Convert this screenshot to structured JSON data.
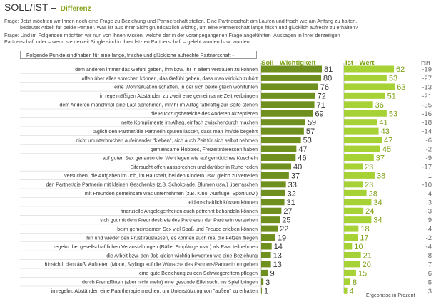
{
  "title": "SOLL/IST –",
  "subtitle": "Differenz",
  "question1": "Frage: Jetzt möchten wir Ihnen noch eine Frage zu Beziehung und Partnerschaft stellen. Eine Partnerschaft am Laufen und frisch wie am Anfang zu halten,\n           bedeutet Arbeit für beide Partner. Was ist aus Ihrer Sicht grundsätzlich wichtig, um eine Partnerschaft lange frisch und glücklich aufrecht zu erhalten?",
  "question2": "Frage: Und im Folgenden möchten wir nun von Ihnen wissen, welche der in der vorangegangenen Frage angeführten  Aussagen in Ihrer derzeitigen\nPartnerschaft oder – wenn sie derzeit Single sind in Ihrer letzten Partnerschaft – gelebt wurden bzw. wurden.",
  "intro": "Folgende Punkte sind/haben für eine lange, frische und glückliche aufrechte Partnerschaft -",
  "footer": "Ergebnisse in Prozent",
  "colors": {
    "soll": "#6f8f1f",
    "ist": "#a6d236",
    "label": "#7ea217"
  },
  "chart_data": {
    "type": "bar",
    "categories": [
      "dem anderen immer das Gefühl geben, ihm bzw. ihr in allem vertrauen zu können",
      "offen über alles sprechen können, das Gefühl geben, dass man wirklich zuhört",
      "eine Wohnsituation schaffen, in der sich beide gleich wohlfühlen",
      "in regelmäßigen Abständen zu zweit eine gemeinsame Zeit verbringen",
      "dem Anderen manchmal eine Last abnehmen, ihn/ihr im Alltag tatkräftig zur Seite stehen",
      "die Rückzugsbereiche des Anderen akzeptieren",
      "nette Komplimente im Alltag, einfach zwischendurch machen",
      "täglich den Partner/die Partnerin spüren lassen, dass man ihn/sie begehrt",
      "nicht ununterbrochen aufeinander \"kleben\", sich auch Zeit für sich selbst nehmen",
      "gemeinsame Hobbies, Freizeitinteressen haben",
      "auf guten Sex genauso viel Wert legen wie auf gemütliches Kuscheln",
      "Eifersucht offen aussprechen und darüber in Ruhe reden",
      "versuchen, die Aufgaben im Job, im Haushalt, bei den Kindern usw. gleich zu verteilen",
      "den Partner/die Partnerin mit kleinen Geschenke (z.B. Schokolade, Blumen usw.) überraschen",
      "mit Freunden gemeinsam was unternehmen (z.B. Kino, Ausflüge, Sport usw.)",
      "leidenschaftlich küssen können",
      "finanzielle Angelegenheiten auch getrennt behandeln können",
      "sich gut mit dem Freundeskreis des Partners / der Partnerin verstehen",
      "beim gemeinsamen Sex viel Spaß und Freude erleben können",
      "hin und wieder den Frust rauslassen, es können auch mal die Fetzen fliegen",
      "regelm. bei gesellschaftlichen Veranstaltungen (Bälle, Empfänge usw.) als Paar  teilnehmen",
      "die Arbeit bzw. den Job gleich wichtig bewerten wie eine Beziehung",
      "hinsichtl. dem äuß. Auftreten (Mode, Styling) auf die Wünsche des Partners/Partnerin eingehen",
      "eine gute Beziehung zu den Schwiegereltern pflegen",
      "durch Fremdflirten (aber nicht mehr) eine gesunde Eifersucht ins Spiel bringen",
      "in regelm. Abständen eine Paartherapie machen, um Unterstützung von \"außen\" zu erhalten"
    ],
    "series": [
      {
        "name": "Soll - Wichtigkeit",
        "values": [
          81,
          80,
          76,
          72,
          71,
          69,
          59,
          57,
          53,
          47,
          46,
          40,
          37,
          33,
          32,
          31,
          27,
          25,
          22,
          19,
          14,
          13,
          13,
          9,
          3,
          1
        ]
      },
      {
        "name": "Ist - Wert",
        "values": [
          62,
          53,
          63,
          51,
          36,
          53,
          41,
          43,
          47,
          45,
          37,
          23,
          38,
          23,
          28,
          34,
          24,
          34,
          18,
          17,
          10,
          21,
          20,
          15,
          8,
          4
        ]
      }
    ],
    "diff_label": "Diff.",
    "diff": [
      "-19",
      "-27",
      "-13",
      "-21",
      "-35",
      "-16",
      "-18",
      "-14",
      "-6",
      "-2",
      "-9",
      "-17",
      "1",
      "-10",
      "-4",
      "3",
      "-3",
      "9",
      "-4",
      "-2",
      "-4",
      "8",
      "7",
      "6",
      "5",
      "3"
    ]
  }
}
